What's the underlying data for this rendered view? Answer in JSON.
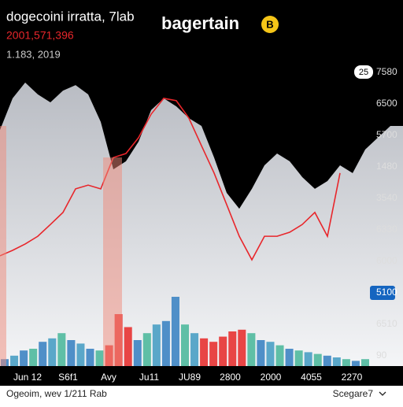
{
  "header": {
    "title": "dogecoini irratta, 7lab",
    "price": "2001,571,396",
    "subtitle": "1.183, 2019",
    "brand": "bagertain",
    "brand_badge": "B"
  },
  "chart_data": {
    "type": "line",
    "ylim": [
      0,
      100
    ],
    "area": {
      "color": "#c9ccd2",
      "values": [
        80.8,
        91.8,
        97.3,
        93.2,
        90.4,
        94.5,
        96.4,
        93.2,
        83.6,
        67.1,
        69.9,
        76.7,
        87.7,
        91.8,
        89,
        84.9,
        82.2,
        71.2,
        58.9,
        53.4,
        60.3,
        68.5,
        72.6,
        69.9,
        64.4,
        60.3,
        63,
        68.5,
        65.8,
        74,
        78.1,
        82.2,
        82.2
      ]
    },
    "line": {
      "color": "#e8262b",
      "values": [
        37,
        38.9,
        41.1,
        43.8,
        47.9,
        52.1,
        60.3,
        61.6,
        60.3,
        71.2,
        72.6,
        78.1,
        86.3,
        91.8,
        91,
        84.9,
        75.3,
        65.8,
        54.8,
        43.8,
        35.6,
        43.8,
        43.8,
        45.2,
        47.9,
        52.1,
        43.8,
        65.8,
        null,
        null,
        null,
        null,
        null
      ]
    },
    "y2lim": [
      0,
      100
    ],
    "volume": {
      "values": [
        8,
        12,
        18,
        20,
        28,
        32,
        38,
        30,
        26,
        20,
        18,
        24,
        60,
        45,
        30,
        38,
        48,
        52,
        80,
        48,
        38,
        32,
        28,
        34,
        40,
        42,
        38,
        30,
        28,
        24,
        20,
        18,
        16,
        14,
        12,
        10,
        8,
        6,
        8
      ],
      "colors": [
        "#4f8fc8",
        "#5aa7c9",
        "#4f8fc8",
        "#5fbfa6",
        "#4f8fc8",
        "#5aa7c9",
        "#5fbfa6",
        "#4f8fc8",
        "#5aa7c9",
        "#4f8fc8",
        "#5fbfa6",
        "#e84545",
        "#e84545",
        "#e84545",
        "#4f8fc8",
        "#5fbfa6",
        "#5aa7c9",
        "#4f8fc8",
        "#4f8fc8",
        "#5fbfa6",
        "#5aa7c9",
        "#e84545",
        "#e84545",
        "#e84545",
        "#e84545",
        "#e84545",
        "#5fbfa6",
        "#4f8fc8",
        "#5aa7c9",
        "#5fbfa6",
        "#4f8fc8",
        "#5fbfa6",
        "#5aa7c9",
        "#5fbfa6",
        "#4f8fc8",
        "#5aa7c9",
        "#5fbfa6",
        "#4f8fc8",
        "#5fbfa6"
      ]
    },
    "x_labels": [
      "Jun 12",
      "S6f1",
      "Avy",
      "Ju11",
      "JU89",
      "2800",
      "2000",
      "4055",
      "2270"
    ],
    "price_badge": "25",
    "right_labels": [
      {
        "text": "7580",
        "badge": false
      },
      {
        "text": "6500",
        "badge": false
      },
      {
        "text": "5700",
        "badge": false
      },
      {
        "text": "1480",
        "badge": false
      },
      {
        "text": "3540",
        "badge": false
      },
      {
        "text": "6330",
        "badge": false
      },
      {
        "text": "6000",
        "badge": false
      },
      {
        "text": "5100",
        "badge": true
      },
      {
        "text": "6510",
        "badge": false
      },
      {
        "text": "90",
        "badge": false
      }
    ],
    "badge_color": "#1565c0"
  },
  "footer": {
    "left": "Ogeoim, wev 1/211 Rab",
    "right": "Scegare7"
  }
}
